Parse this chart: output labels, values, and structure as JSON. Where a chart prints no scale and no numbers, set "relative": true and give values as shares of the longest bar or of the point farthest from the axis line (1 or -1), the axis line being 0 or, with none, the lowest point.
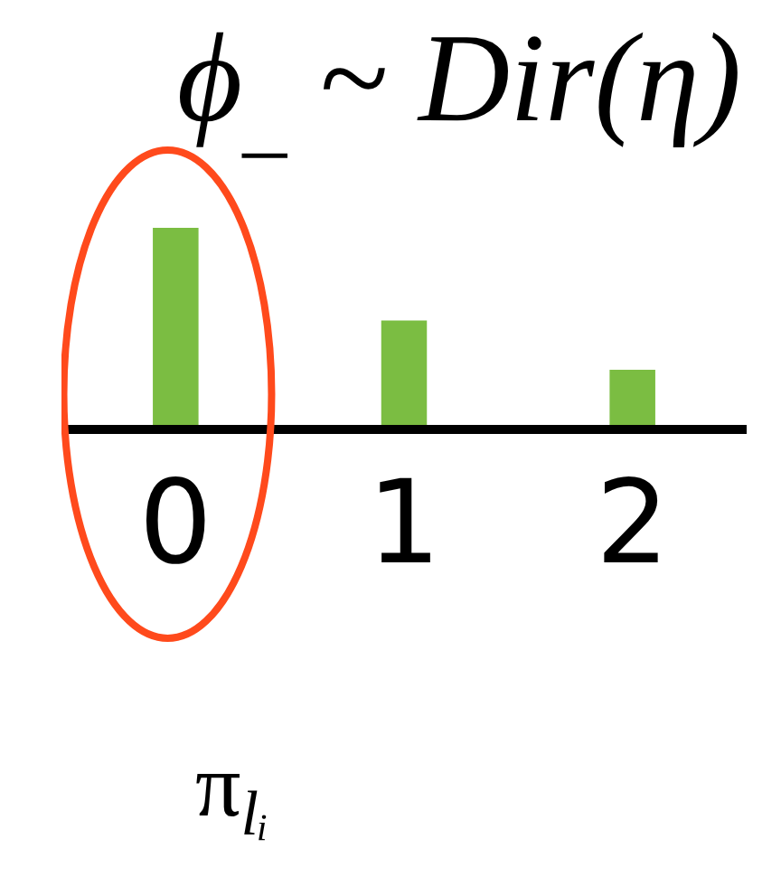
{
  "chart_data": {
    "type": "bar",
    "title": "ϕ$_{_}$ ~ Dir(η)",
    "categories": [
      "0",
      "1",
      "2"
    ],
    "values": [
      1,
      0.53,
      0.28
    ],
    "color": "#7bbd42",
    "relative": true,
    "annotations": [
      "π$_{lᵢ}$"
    ]
  }
}
